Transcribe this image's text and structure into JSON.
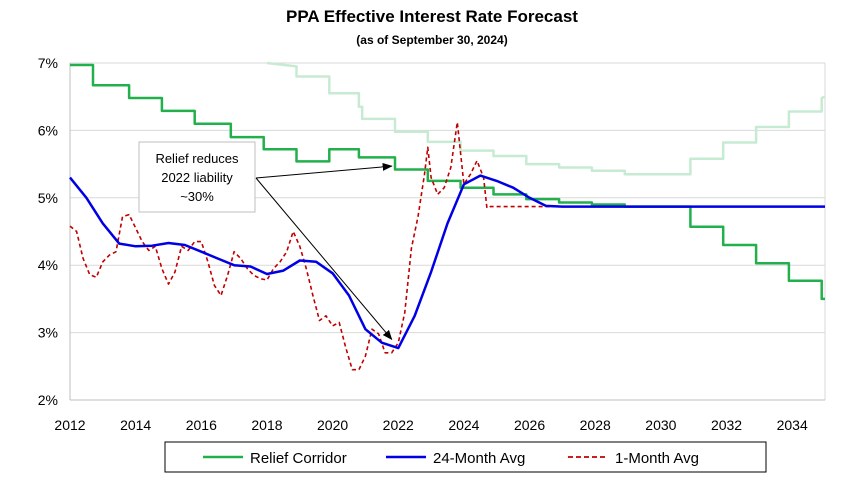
{
  "chart_data": {
    "type": "line",
    "title": "PPA Effective Interest Rate Forecast",
    "subtitle": "(as of September 30, 2024)",
    "xlabel": "",
    "ylabel": "",
    "xlim": [
      2012,
      2035
    ],
    "ylim": [
      2,
      7
    ],
    "x_ticks": [
      2012,
      2014,
      2016,
      2018,
      2020,
      2022,
      2024,
      2026,
      2028,
      2030,
      2032,
      2034
    ],
    "y_ticks": [
      2,
      3,
      4,
      5,
      6,
      7
    ],
    "y_tick_labels": [
      "2%",
      "3%",
      "4%",
      "5%",
      "6%",
      "7%"
    ],
    "grid": "horizontal",
    "legend_position": "bottom",
    "colors": {
      "relief_corridor": "#22b04c",
      "relief_corridor_upper": "#c7ebd2",
      "avg_24_month": "#0000e6",
      "avg_1_month": "#c00000",
      "grid": "#d9d9d9",
      "axis": "#bfbfbf"
    },
    "series": [
      {
        "name": "Relief Corridor",
        "style": "step",
        "points": [
          [
            2012,
            6.97
          ],
          [
            2012.7,
            6.97
          ],
          [
            2012.7,
            6.67
          ],
          [
            2013.8,
            6.67
          ],
          [
            2013.8,
            6.48
          ],
          [
            2014.8,
            6.48
          ],
          [
            2014.8,
            6.29
          ],
          [
            2015.8,
            6.29
          ],
          [
            2015.8,
            6.1
          ],
          [
            2016.9,
            6.1
          ],
          [
            2016.9,
            5.9
          ],
          [
            2017.9,
            5.9
          ],
          [
            2017.9,
            5.72
          ],
          [
            2018.9,
            5.72
          ],
          [
            2018.9,
            5.54
          ],
          [
            2019.9,
            5.54
          ],
          [
            2019.9,
            5.72
          ],
          [
            2020.8,
            5.72
          ],
          [
            2020.8,
            5.6
          ],
          [
            2021.9,
            5.6
          ],
          [
            2021.9,
            5.42
          ],
          [
            2022.9,
            5.42
          ],
          [
            2022.9,
            5.25
          ],
          [
            2023.9,
            5.25
          ],
          [
            2023.9,
            5.15
          ],
          [
            2024.9,
            5.15
          ],
          [
            2024.9,
            5.05
          ],
          [
            2025.9,
            5.05
          ],
          [
            2025.9,
            4.98
          ],
          [
            2026.9,
            4.98
          ],
          [
            2026.9,
            4.93
          ],
          [
            2027.9,
            4.93
          ],
          [
            2027.9,
            4.9
          ],
          [
            2028.9,
            4.9
          ],
          [
            2028.9,
            4.87
          ],
          [
            2030.9,
            4.87
          ],
          [
            2030.9,
            4.57
          ],
          [
            2031.9,
            4.57
          ],
          [
            2031.9,
            4.3
          ],
          [
            2032.9,
            4.3
          ],
          [
            2032.9,
            4.03
          ],
          [
            2033.9,
            4.03
          ],
          [
            2033.9,
            3.77
          ],
          [
            2034.9,
            3.77
          ],
          [
            2034.9,
            3.5
          ],
          [
            2035,
            3.5
          ]
        ]
      },
      {
        "name": "Relief Corridor (upper)",
        "style": "step",
        "points": [
          [
            2018,
            7.0
          ],
          [
            2018.9,
            6.95
          ],
          [
            2018.9,
            6.8
          ],
          [
            2019.9,
            6.8
          ],
          [
            2019.9,
            6.55
          ],
          [
            2020.8,
            6.55
          ],
          [
            2020.8,
            6.35
          ],
          [
            2020.9,
            6.35
          ],
          [
            2020.9,
            6.17
          ],
          [
            2021.9,
            6.17
          ],
          [
            2021.9,
            5.98
          ],
          [
            2022.9,
            5.98
          ],
          [
            2022.9,
            5.83
          ],
          [
            2023.9,
            5.83
          ],
          [
            2023.9,
            5.7
          ],
          [
            2024.9,
            5.7
          ],
          [
            2024.9,
            5.62
          ],
          [
            2025.9,
            5.62
          ],
          [
            2025.9,
            5.5
          ],
          [
            2026.9,
            5.5
          ],
          [
            2026.9,
            5.45
          ],
          [
            2027.9,
            5.45
          ],
          [
            2027.9,
            5.4
          ],
          [
            2028.9,
            5.4
          ],
          [
            2028.9,
            5.35
          ],
          [
            2029.9,
            5.35
          ],
          [
            2029.9,
            5.35
          ],
          [
            2030.9,
            5.35
          ],
          [
            2030.9,
            5.58
          ],
          [
            2031.9,
            5.58
          ],
          [
            2031.9,
            5.82
          ],
          [
            2032.9,
            5.82
          ],
          [
            2032.9,
            6.05
          ],
          [
            2033.9,
            6.05
          ],
          [
            2033.9,
            6.28
          ],
          [
            2034.9,
            6.28
          ],
          [
            2034.9,
            6.48
          ],
          [
            2035,
            6.5
          ]
        ]
      },
      {
        "name": "24-Month Avg",
        "style": "line",
        "points": [
          [
            2012,
            5.3
          ],
          [
            2012.5,
            5.0
          ],
          [
            2013,
            4.62
          ],
          [
            2013.5,
            4.32
          ],
          [
            2014,
            4.28
          ],
          [
            2014.5,
            4.29
          ],
          [
            2015,
            4.33
          ],
          [
            2015.5,
            4.3
          ],
          [
            2016,
            4.2
          ],
          [
            2016.5,
            4.1
          ],
          [
            2017,
            4.0
          ],
          [
            2017.5,
            3.98
          ],
          [
            2018,
            3.87
          ],
          [
            2018.5,
            3.92
          ],
          [
            2019,
            4.07
          ],
          [
            2019.5,
            4.05
          ],
          [
            2020,
            3.88
          ],
          [
            2020.5,
            3.55
          ],
          [
            2021,
            3.05
          ],
          [
            2021.5,
            2.85
          ],
          [
            2022,
            2.77
          ],
          [
            2022.5,
            3.25
          ],
          [
            2023,
            3.9
          ],
          [
            2023.5,
            4.62
          ],
          [
            2024,
            5.2
          ],
          [
            2024.5,
            5.33
          ],
          [
            2025,
            5.25
          ],
          [
            2025.5,
            5.15
          ],
          [
            2026,
            5.0
          ],
          [
            2026.5,
            4.88
          ],
          [
            2027,
            4.87
          ],
          [
            2035,
            4.87
          ]
        ]
      },
      {
        "name": "1-Month Avg",
        "style": "dashed",
        "points": [
          [
            2012,
            4.58
          ],
          [
            2012.2,
            4.5
          ],
          [
            2012.4,
            4.1
          ],
          [
            2012.6,
            3.86
          ],
          [
            2012.8,
            3.82
          ],
          [
            2013,
            4.05
          ],
          [
            2013.2,
            4.15
          ],
          [
            2013.4,
            4.2
          ],
          [
            2013.6,
            4.72
          ],
          [
            2013.8,
            4.75
          ],
          [
            2014,
            4.55
          ],
          [
            2014.2,
            4.35
          ],
          [
            2014.4,
            4.22
          ],
          [
            2014.6,
            4.28
          ],
          [
            2014.8,
            3.95
          ],
          [
            2015,
            3.72
          ],
          [
            2015.2,
            3.9
          ],
          [
            2015.4,
            4.28
          ],
          [
            2015.6,
            4.22
          ],
          [
            2015.8,
            4.35
          ],
          [
            2016,
            4.35
          ],
          [
            2016.2,
            4.05
          ],
          [
            2016.4,
            3.7
          ],
          [
            2016.6,
            3.55
          ],
          [
            2016.8,
            3.85
          ],
          [
            2017,
            4.2
          ],
          [
            2017.2,
            4.1
          ],
          [
            2017.4,
            3.95
          ],
          [
            2017.6,
            3.85
          ],
          [
            2017.8,
            3.8
          ],
          [
            2018,
            3.78
          ],
          [
            2018.2,
            3.95
          ],
          [
            2018.4,
            4.05
          ],
          [
            2018.6,
            4.2
          ],
          [
            2018.8,
            4.5
          ],
          [
            2019,
            4.28
          ],
          [
            2019.2,
            3.95
          ],
          [
            2019.4,
            3.55
          ],
          [
            2019.6,
            3.18
          ],
          [
            2019.8,
            3.25
          ],
          [
            2020,
            3.1
          ],
          [
            2020.2,
            3.15
          ],
          [
            2020.4,
            2.78
          ],
          [
            2020.6,
            2.45
          ],
          [
            2020.8,
            2.45
          ],
          [
            2021,
            2.65
          ],
          [
            2021.2,
            3.05
          ],
          [
            2021.4,
            2.98
          ],
          [
            2021.6,
            2.7
          ],
          [
            2021.8,
            2.7
          ],
          [
            2022,
            2.85
          ],
          [
            2022.2,
            3.3
          ],
          [
            2022.4,
            4.25
          ],
          [
            2022.6,
            4.72
          ],
          [
            2022.8,
            5.35
          ],
          [
            2022.9,
            5.75
          ],
          [
            2023,
            5.3
          ],
          [
            2023.2,
            5.05
          ],
          [
            2023.4,
            5.15
          ],
          [
            2023.6,
            5.45
          ],
          [
            2023.8,
            6.12
          ],
          [
            2024,
            5.2
          ],
          [
            2024.2,
            5.35
          ],
          [
            2024.4,
            5.55
          ],
          [
            2024.6,
            5.3
          ],
          [
            2024.7,
            4.85
          ],
          [
            2024.8,
            4.87
          ],
          [
            2035,
            4.87
          ]
        ]
      }
    ],
    "legend": [
      "Relief Corridor",
      "24-Month Avg",
      "1-Month Avg"
    ],
    "annotation": {
      "lines": [
        "Relief reduces",
        "2022 liability",
        "~30%"
      ],
      "arrow_targets": [
        [
          2021.8,
          5.47
        ],
        [
          2021.8,
          2.9
        ]
      ]
    }
  }
}
